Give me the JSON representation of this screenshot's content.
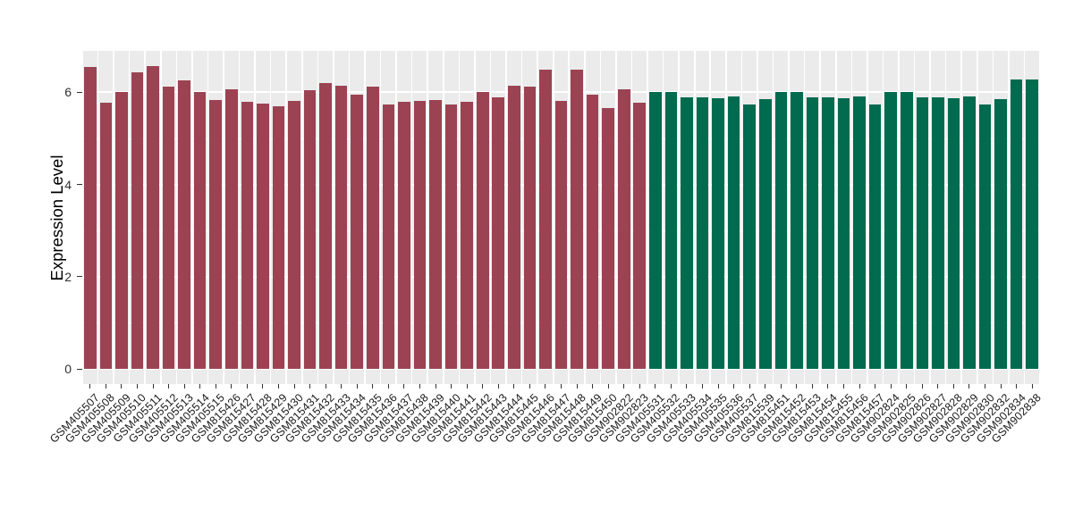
{
  "chart_data": {
    "type": "bar",
    "title": "",
    "xlabel": "",
    "ylabel": "Expression Level",
    "ylim": [
      -0.33,
      6.9
    ],
    "yticks": [
      0,
      2,
      4,
      6
    ],
    "yticks_minor": [
      1,
      3,
      5
    ],
    "legend": "none",
    "grid": {
      "panel_background": "#EBEBEB",
      "gridline_color": "#FFFFFF"
    },
    "group_colors": {
      "group1": "#9B4352",
      "group2": "#006B4E"
    },
    "bars": [
      {
        "label": "GSM405507",
        "value": 6.56,
        "group": "group1"
      },
      {
        "label": "GSM405508",
        "value": 5.78,
        "group": "group1"
      },
      {
        "label": "GSM405509",
        "value": 6.0,
        "group": "group1"
      },
      {
        "label": "GSM405510",
        "value": 6.43,
        "group": "group1"
      },
      {
        "label": "GSM405511",
        "value": 6.57,
        "group": "group1"
      },
      {
        "label": "GSM405512",
        "value": 6.13,
        "group": "group1"
      },
      {
        "label": "GSM405513",
        "value": 6.26,
        "group": "group1"
      },
      {
        "label": "GSM405514",
        "value": 6.01,
        "group": "group1"
      },
      {
        "label": "GSM405515",
        "value": 5.84,
        "group": "group1"
      },
      {
        "label": "GSM815426",
        "value": 6.07,
        "group": "group1"
      },
      {
        "label": "GSM815427",
        "value": 5.79,
        "group": "group1"
      },
      {
        "label": "GSM815428",
        "value": 5.76,
        "group": "group1"
      },
      {
        "label": "GSM815429",
        "value": 5.69,
        "group": "group1"
      },
      {
        "label": "GSM815430",
        "value": 5.82,
        "group": "group1"
      },
      {
        "label": "GSM815431",
        "value": 6.05,
        "group": "group1"
      },
      {
        "label": "GSM815432",
        "value": 6.21,
        "group": "group1"
      },
      {
        "label": "GSM815433",
        "value": 6.14,
        "group": "group1"
      },
      {
        "label": "GSM815434",
        "value": 5.94,
        "group": "group1"
      },
      {
        "label": "GSM815435",
        "value": 6.12,
        "group": "group1"
      },
      {
        "label": "GSM815436",
        "value": 5.73,
        "group": "group1"
      },
      {
        "label": "GSM815437",
        "value": 5.79,
        "group": "group1"
      },
      {
        "label": "GSM815438",
        "value": 5.82,
        "group": "group1"
      },
      {
        "label": "GSM815439",
        "value": 5.84,
        "group": "group1"
      },
      {
        "label": "GSM815440",
        "value": 5.73,
        "group": "group1"
      },
      {
        "label": "GSM815441",
        "value": 5.79,
        "group": "group1"
      },
      {
        "label": "GSM815442",
        "value": 6.0,
        "group": "group1"
      },
      {
        "label": "GSM815443",
        "value": 5.9,
        "group": "group1"
      },
      {
        "label": "GSM815444",
        "value": 6.14,
        "group": "group1"
      },
      {
        "label": "GSM815445",
        "value": 6.13,
        "group": "group1"
      },
      {
        "label": "GSM815446",
        "value": 6.5,
        "group": "group1"
      },
      {
        "label": "GSM815447",
        "value": 5.81,
        "group": "group1"
      },
      {
        "label": "GSM815448",
        "value": 6.49,
        "group": "group1"
      },
      {
        "label": "GSM815449",
        "value": 5.95,
        "group": "group1"
      },
      {
        "label": "GSM815450",
        "value": 5.66,
        "group": "group1"
      },
      {
        "label": "GSM902822",
        "value": 6.07,
        "group": "group1"
      },
      {
        "label": "GSM902823",
        "value": 5.78,
        "group": "group1"
      },
      {
        "label": "GSM405531",
        "value": 6.01,
        "group": "group2"
      },
      {
        "label": "GSM405532",
        "value": 6.01,
        "group": "group2"
      },
      {
        "label": "GSM405533",
        "value": 5.9,
        "group": "group2"
      },
      {
        "label": "GSM405534",
        "value": 5.9,
        "group": "group2"
      },
      {
        "label": "GSM405535",
        "value": 5.88,
        "group": "group2"
      },
      {
        "label": "GSM405536",
        "value": 5.91,
        "group": "group2"
      },
      {
        "label": "GSM405537",
        "value": 5.74,
        "group": "group2"
      },
      {
        "label": "GSM815539",
        "value": 5.85,
        "group": "group2"
      },
      {
        "label": "GSM815451",
        "value": 6.0,
        "group": "group2"
      },
      {
        "label": "GSM815452",
        "value": 6.0,
        "group": "group2"
      },
      {
        "label": "GSM815453",
        "value": 5.9,
        "group": "group2"
      },
      {
        "label": "GSM815454",
        "value": 5.9,
        "group": "group2"
      },
      {
        "label": "GSM815455",
        "value": 5.87,
        "group": "group2"
      },
      {
        "label": "GSM815456",
        "value": 5.91,
        "group": "group2"
      },
      {
        "label": "GSM815457",
        "value": 5.74,
        "group": "group2"
      },
      {
        "label": "GSM902824",
        "value": 6.0,
        "group": "group2"
      },
      {
        "label": "GSM902825",
        "value": 6.01,
        "group": "group2"
      },
      {
        "label": "GSM902826",
        "value": 5.9,
        "group": "group2"
      },
      {
        "label": "GSM902827",
        "value": 5.9,
        "group": "group2"
      },
      {
        "label": "GSM902828",
        "value": 5.87,
        "group": "group2"
      },
      {
        "label": "GSM902829",
        "value": 5.91,
        "group": "group2"
      },
      {
        "label": "GSM902830",
        "value": 5.74,
        "group": "group2"
      },
      {
        "label": "GSM902832",
        "value": 5.86,
        "group": "group2"
      },
      {
        "label": "GSM902834",
        "value": 6.27,
        "group": "group2"
      },
      {
        "label": "GSM902838",
        "value": 6.27,
        "group": "group2"
      }
    ]
  }
}
